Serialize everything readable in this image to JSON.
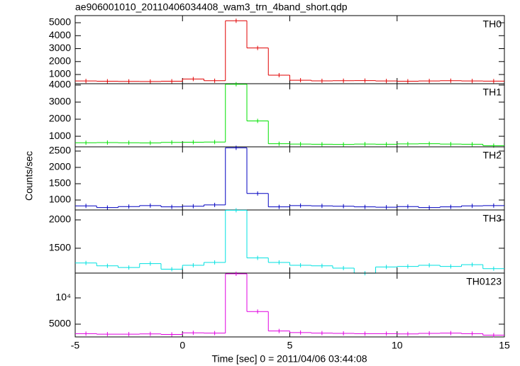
{
  "chart_data": {
    "type": "step",
    "title": "ae906001010_20110406034408_wam3_trn_4band_short.qdp",
    "xlabel": "Time [sec] 0 = 2011/04/06 03:44:08",
    "ylabel": "Counts/sec",
    "xlim": [
      -5,
      15
    ],
    "xticks": [
      -5,
      0,
      5,
      10,
      15
    ],
    "bins": [
      -5,
      -4,
      -3,
      -2,
      -1,
      0,
      1,
      2,
      3,
      4,
      5,
      6,
      7,
      8,
      9,
      10,
      11,
      12,
      13,
      14,
      15
    ],
    "panels": [
      {
        "name": "TH0",
        "color": "#e00000",
        "ylim": [
          290,
          5550
        ],
        "yticks": [
          1000,
          2000,
          3000,
          4000,
          5000
        ],
        "values": [
          500,
          480,
          470,
          460,
          480,
          650,
          520,
          5150,
          3050,
          950,
          560,
          510,
          520,
          530,
          500,
          480,
          500,
          520,
          500,
          490
        ]
      },
      {
        "name": "TH1",
        "color": "#00e000",
        "ylim": [
          380,
          4080
        ],
        "yticks": [
          1000,
          2000,
          3000,
          4000
        ],
        "values": [
          620,
          630,
          620,
          610,
          640,
          650,
          660,
          4050,
          1900,
          560,
          540,
          530,
          520,
          540,
          530,
          550,
          560,
          540,
          530,
          450
        ]
      },
      {
        "name": "TH2",
        "color": "#0000c0",
        "ylim": [
          696,
          2630
        ],
        "yticks": [
          1000,
          1500,
          2000,
          2500
        ],
        "values": [
          820,
          770,
          800,
          830,
          790,
          810,
          850,
          2600,
          1200,
          790,
          830,
          820,
          810,
          790,
          780,
          800,
          770,
          790,
          820,
          830
        ]
      },
      {
        "name": "TH3",
        "color": "#00e0e0",
        "ylim": [
          1062,
          2175
        ],
        "yticks": [
          1500,
          2000
        ],
        "values": [
          1240,
          1190,
          1160,
          1230,
          1130,
          1200,
          1250,
          2170,
          1330,
          1250,
          1200,
          1190,
          1150,
          1060,
          1170,
          1180,
          1200,
          1180,
          1210,
          1140
        ]
      },
      {
        "name": "TH0123",
        "color": "#e000e0",
        "ylim": [
          2570,
          14730
        ],
        "yticks": [
          5000,
          {
            "value": 10000,
            "label": "10⁴"
          }
        ],
        "values": [
          3200,
          3100,
          3100,
          3150,
          3050,
          3350,
          3300,
          14600,
          7400,
          3700,
          3400,
          3300,
          3250,
          3200,
          3200,
          3150,
          3250,
          3300,
          3200,
          2900
        ]
      }
    ]
  }
}
